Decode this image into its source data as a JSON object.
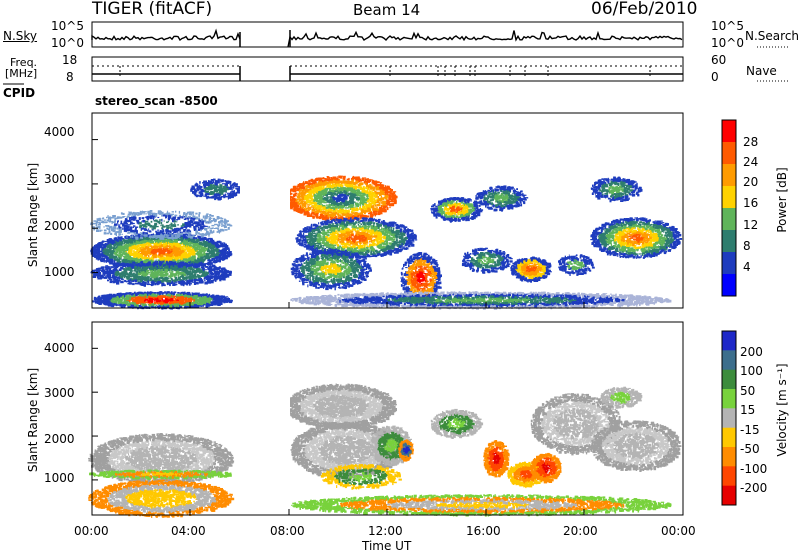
{
  "header": {
    "title": "TIGER (fitACF)",
    "beam": "Beam 14",
    "date": "06/Feb/2010"
  },
  "panels": {
    "nsky_label": "N.Sky",
    "nsearch_label": "N.Search",
    "nsky_ticks": [
      "10^5",
      "10^0"
    ],
    "nsearch_ticks": [
      "10^5",
      "10^0"
    ],
    "freq_label": "Freq.",
    "freq_unit": "[MHz]",
    "freq_ticks": [
      "18",
      "8"
    ],
    "nave_label": "Nave",
    "nave_ticks": [
      "60",
      "0"
    ],
    "cpid_label": "CPID",
    "cpid_value": "stereo_scan -8500"
  },
  "chart_data": [
    {
      "type": "heatmap",
      "ylabel": "Slant Range [km]",
      "xlabel": "",
      "ylim": [
        200,
        4600
      ],
      "yticks": [
        "1000",
        "2000",
        "3000",
        "4000"
      ],
      "colorbar": {
        "title": "Power [dB]",
        "ticks": [
          "28",
          "24",
          "20",
          "16",
          "12",
          "8",
          "4"
        ],
        "colors": [
          "#ff0000",
          "#ff5a00",
          "#ff9b00",
          "#ffd200",
          "#5fb45a",
          "#2e7d6e",
          "#1e3cbe",
          "#0000ff"
        ]
      }
    },
    {
      "type": "heatmap",
      "ylabel": "Slant Range [km]",
      "xlabel": "Time UT",
      "ylim": [
        200,
        4600
      ],
      "yticks": [
        "1000",
        "2000",
        "3000",
        "4000"
      ],
      "xticks": [
        "00:00",
        "04:00",
        "08:00",
        "12:00",
        "16:00",
        "20:00",
        "00:00"
      ],
      "colorbar": {
        "title": "Velocity [m s⁻¹]",
        "ticks": [
          "200",
          "100",
          "50",
          "15",
          "-15",
          "-50",
          "-100",
          "-200"
        ],
        "colors": [
          "#1e28c8",
          "#3c6e8c",
          "#3c8c3c",
          "#78d23c",
          "#b4b4b4",
          "#ffc800",
          "#ff8c00",
          "#ff4600",
          "#e60000"
        ]
      }
    }
  ]
}
